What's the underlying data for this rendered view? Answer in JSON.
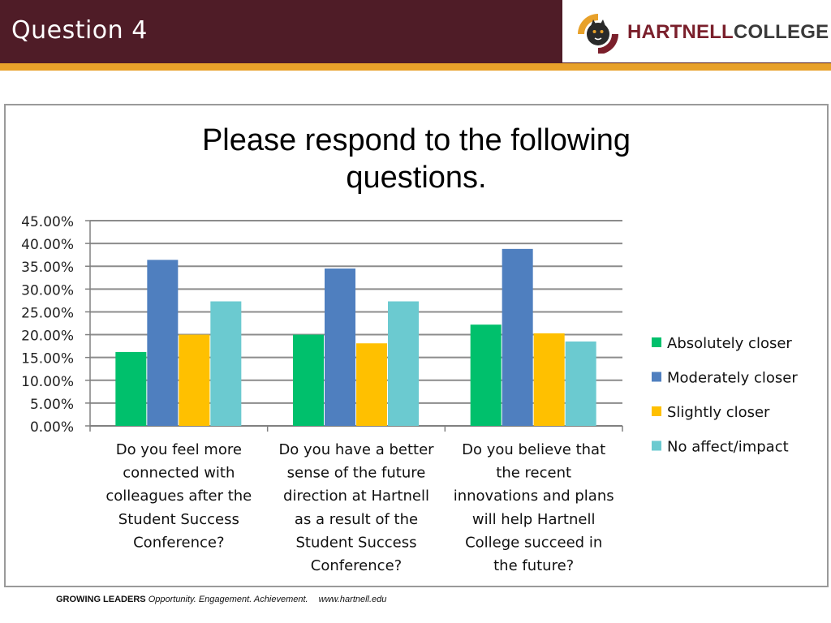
{
  "header": {
    "title": "Question 4",
    "logo": {
      "text_part1": "HARTNELL",
      "text_part2": "COLLEGE",
      "icon": "panther-crest-icon"
    }
  },
  "footer": {
    "tagline_bold": "GROWING LEADERS",
    "tagline_italic": "Opportunity. Engagement. Achievement.",
    "url": "www.hartnell.edu"
  },
  "chart_data": {
    "type": "bar",
    "title_lines": [
      "Please respond to the following",
      "questions."
    ],
    "categories": [
      [
        "Do you feel more",
        "connected with",
        "colleagues after the",
        "Student Success",
        "Conference?"
      ],
      [
        "Do you have a better",
        "sense of the future",
        "direction at Hartnell",
        "as a result of the",
        "Student Success",
        "Conference?"
      ],
      [
        "Do you believe that",
        "the recent",
        "innovations and plans",
        "will help Hartnell",
        "College succeed in",
        "the future?"
      ]
    ],
    "series": [
      {
        "name": "Absolutely closer",
        "color": "#00c06c",
        "values": [
          16.2,
          20.0,
          22.2
        ]
      },
      {
        "name": "Moderately closer",
        "color": "#4f7fbf",
        "values": [
          36.4,
          34.5,
          38.8
        ]
      },
      {
        "name": "Slightly closer",
        "color": "#ffc000",
        "values": [
          20.0,
          18.1,
          20.3
        ]
      },
      {
        "name": "No affect/impact",
        "color": "#6bcad0",
        "values": [
          27.3,
          27.3,
          18.5
        ]
      }
    ],
    "ylim": [
      0,
      45
    ],
    "yticks": [
      "0.00%",
      "5.00%",
      "10.00%",
      "15.00%",
      "20.00%",
      "25.00%",
      "30.00%",
      "35.00%",
      "40.00%",
      "45.00%"
    ],
    "grid": true,
    "legend_position": "right"
  }
}
